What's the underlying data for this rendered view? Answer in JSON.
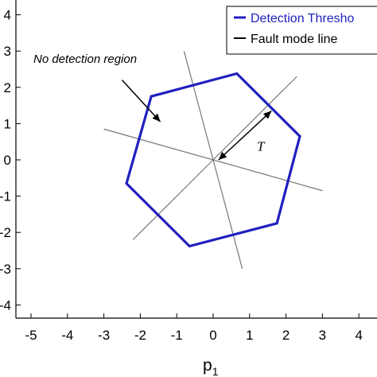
{
  "chart_data": {
    "type": "line",
    "title": "",
    "xlabel": "p",
    "xlabel_subscript": "1",
    "ylabel": "",
    "xlim": [
      -5.5,
      4.5
    ],
    "ylim": [
      -4.4,
      4.4
    ],
    "x_ticks": [
      -5,
      -4,
      -3,
      -2,
      -1,
      0,
      1,
      2,
      3,
      4
    ],
    "y_ticks": [
      4,
      3,
      2,
      1,
      0,
      -1,
      -2,
      -3,
      -4
    ],
    "x_tick_labels": [
      "-5",
      "-4",
      "-3",
      "-2",
      "-1",
      "0",
      "1",
      "2",
      "3",
      "4"
    ],
    "y_tick_labels": [
      "4",
      "3",
      "2",
      "1",
      "0",
      "-1",
      "-2",
      "-3",
      "-4"
    ],
    "grid": false,
    "legend_position": "top-right",
    "legend": [
      "Detection Thresho",
      "Fault mode line"
    ],
    "series": [
      {
        "name": "Detection Thresho",
        "color": "#1f1fbf",
        "closed": true,
        "points": [
          [
            -1.7,
            1.75
          ],
          [
            0.65,
            2.38
          ],
          [
            2.38,
            0.65
          ],
          [
            1.75,
            -1.75
          ],
          [
            -0.65,
            -2.38
          ],
          [
            -2.38,
            -0.65
          ]
        ]
      },
      {
        "name": "Fault mode line",
        "color": "#777777",
        "lines": [
          [
            [
              -3.0,
              0.85
            ],
            [
              3.0,
              -0.85
            ]
          ],
          [
            [
              -0.8,
              3.0
            ],
            [
              0.8,
              -3.0
            ]
          ],
          [
            [
              -2.2,
              -2.2
            ],
            [
              2.3,
              2.3
            ]
          ]
        ]
      }
    ],
    "annotations": [
      {
        "text": "No detection region",
        "arrow_from": [
          -2.5,
          2.2
        ],
        "arrow_to": [
          -1.45,
          1.05
        ]
      },
      {
        "text": "T",
        "text_at": [
          1.2,
          0.25
        ],
        "arrow_from": [
          0.15,
          0.0
        ],
        "arrow_to": [
          1.6,
          1.35
        ]
      }
    ]
  }
}
